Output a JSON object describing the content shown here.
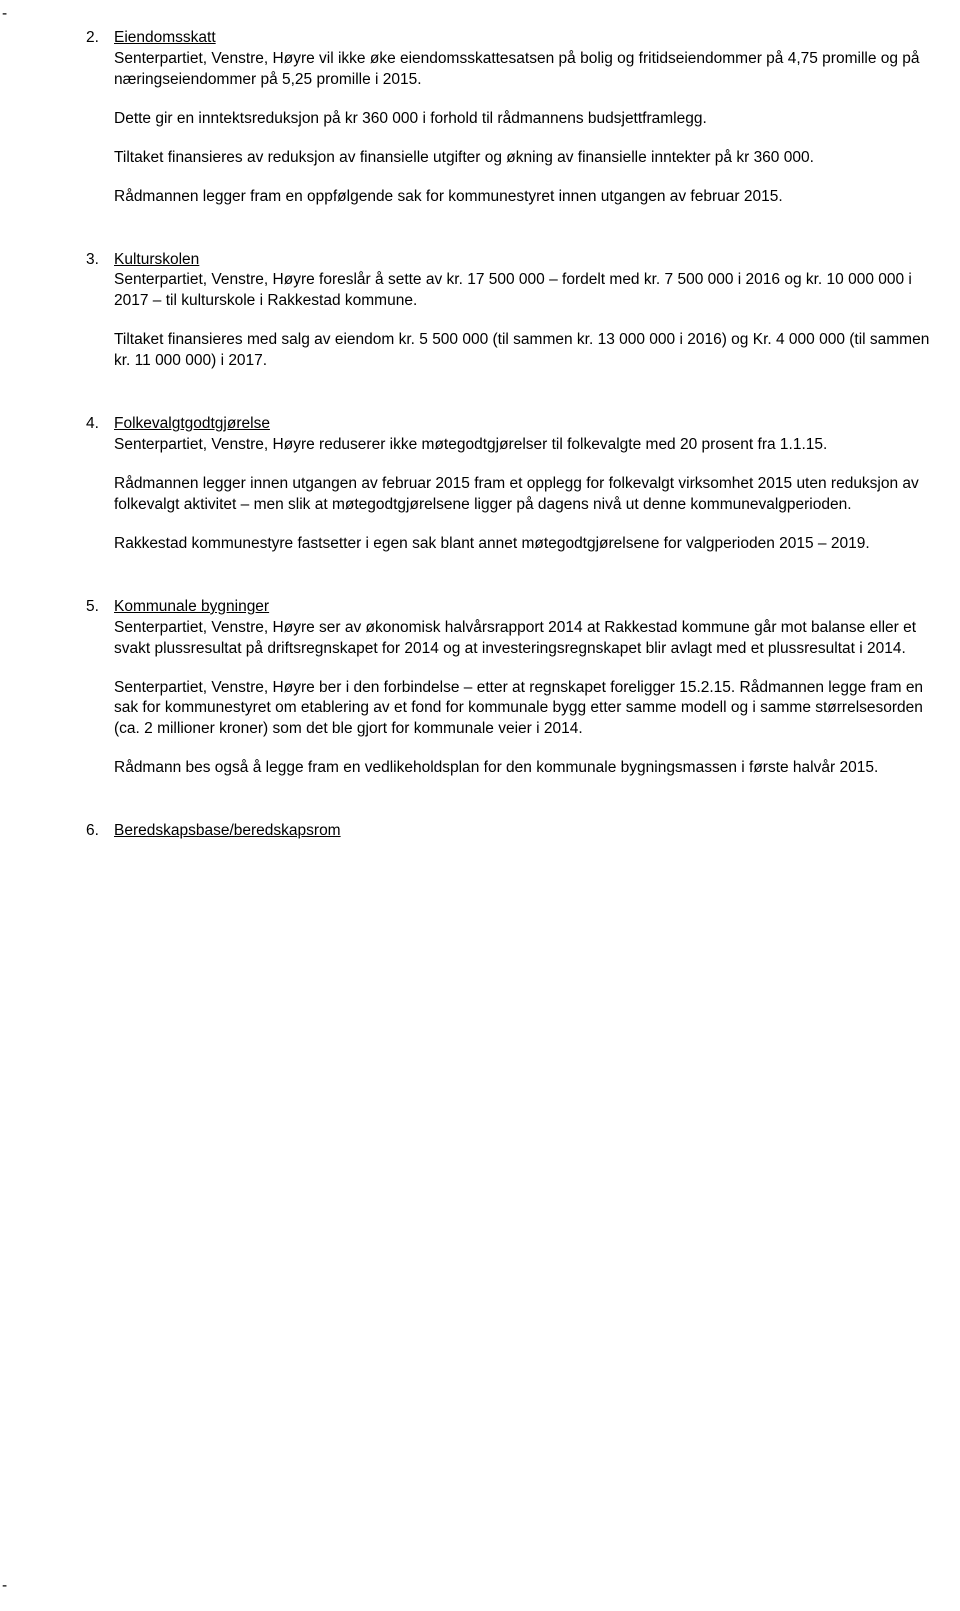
{
  "items": [
    {
      "num": "2",
      "heading": "Eiendomsskatt",
      "paras": [
        "Senterpartiet, Venstre, Høyre vil ikke øke eiendomsskattesatsen på bolig og fritidseiendommer på 4,75 promille og på næringseiendommer på 5,25 promille i 2015.",
        "Dette gir en inntektsreduksjon på kr 360 000 i forhold til rådmannens budsjettframlegg.",
        "Tiltaket finansieres av reduksjon av finansielle utgifter og økning av finansielle inntekter på kr 360 000.",
        "Rådmannen legger fram en oppfølgende sak for kommunestyret innen utgangen av februar 2015."
      ]
    },
    {
      "num": "3",
      "heading": "Kulturskolen",
      "paras": [
        "Senterpartiet, Venstre, Høyre foreslår å sette av kr. 17 500 000 – fordelt med kr. 7 500 000 i 2016 og kr. 10 000 000 i 2017 – til kulturskole i Rakkestad kommune.",
        "Tiltaket finansieres med salg av eiendom kr. 5 500 000 (til sammen kr. 13 000 000 i 2016) og Kr. 4 000 000 (til sammen kr. 11 000 000) i 2017."
      ]
    },
    {
      "num": "4",
      "heading": "Folkevalgtgodtgjørelse",
      "paras": [
        "Senterpartiet, Venstre, Høyre reduserer ikke møtegodtgjørelser til folkevalgte med 20 prosent fra 1.1.15.",
        "Rådmannen legger innen utgangen av februar 2015 fram et opplegg for folkevalgt virksomhet 2015 uten reduksjon av folkevalgt aktivitet – men slik at møtegodtgjørelsene ligger på dagens nivå ut denne kommunevalgperioden.",
        "Rakkestad kommunestyre fastsetter i egen sak blant annet møtegodtgjørelsene for valgperioden 2015 – 2019."
      ]
    },
    {
      "num": "5",
      "heading": "Kommunale bygninger",
      "paras": [
        "Senterpartiet, Venstre, Høyre ser av økonomisk halvårsrapport 2014 at Rakkestad kommune går mot balanse eller et svakt plussresultat på driftsregnskapet for 2014 og at investeringsregnskapet blir avlagt med et plussresultat i 2014.",
        "Senterpartiet, Venstre, Høyre ber i den forbindelse – etter at regnskapet foreligger 15.2.15. Rådmannen legge fram en sak for kommunestyret om etablering av et fond for kommunale bygg etter samme modell og i samme størrelsesorden (ca. 2 millioner kroner) som det ble gjort for kommunale veier i 2014.",
        "Rådmann bes også å legge fram en vedlikeholdsplan for den kommunale bygningsmassen i første halvår 2015."
      ]
    },
    {
      "num": "6",
      "heading": "Beredskapsbase/beredskapsrom",
      "paras": []
    }
  ],
  "dash": "-"
}
